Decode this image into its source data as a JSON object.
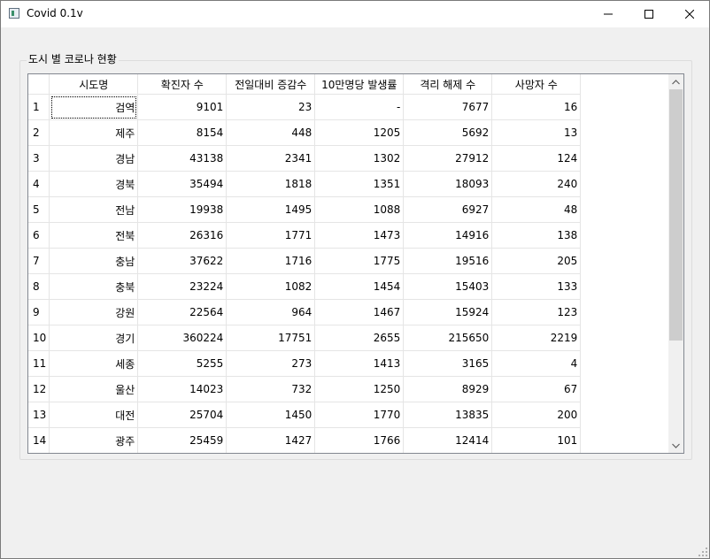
{
  "window": {
    "title": "Covid 0.1v"
  },
  "group": {
    "title": "도시 별 코로나 현황"
  },
  "table": {
    "columns": [
      "시도명",
      "확진자 수",
      "전일대비 증감수",
      "10만명당 발생률",
      "격리 해제 수",
      "사망자 수"
    ],
    "rows": [
      {
        "num": "1",
        "cells": [
          "검역",
          "9101",
          "23",
          "-",
          "7677",
          "16"
        ]
      },
      {
        "num": "2",
        "cells": [
          "제주",
          "8154",
          "448",
          "1205",
          "5692",
          "13"
        ]
      },
      {
        "num": "3",
        "cells": [
          "경남",
          "43138",
          "2341",
          "1302",
          "27912",
          "124"
        ]
      },
      {
        "num": "4",
        "cells": [
          "경북",
          "35494",
          "1818",
          "1351",
          "18093",
          "240"
        ]
      },
      {
        "num": "5",
        "cells": [
          "전남",
          "19938",
          "1495",
          "1088",
          "6927",
          "48"
        ]
      },
      {
        "num": "6",
        "cells": [
          "전북",
          "26316",
          "1771",
          "1473",
          "14916",
          "138"
        ]
      },
      {
        "num": "7",
        "cells": [
          "충남",
          "37622",
          "1716",
          "1775",
          "19516",
          "205"
        ]
      },
      {
        "num": "8",
        "cells": [
          "충북",
          "23224",
          "1082",
          "1454",
          "15403",
          "133"
        ]
      },
      {
        "num": "9",
        "cells": [
          "강원",
          "22564",
          "964",
          "1467",
          "15924",
          "123"
        ]
      },
      {
        "num": "10",
        "cells": [
          "경기",
          "360224",
          "17751",
          "2655",
          "215650",
          "2219"
        ]
      },
      {
        "num": "11",
        "cells": [
          "세종",
          "5255",
          "273",
          "1413",
          "3165",
          "4"
        ]
      },
      {
        "num": "12",
        "cells": [
          "울산",
          "14023",
          "732",
          "1250",
          "8929",
          "67"
        ]
      },
      {
        "num": "13",
        "cells": [
          "대전",
          "25704",
          "1450",
          "1770",
          "13835",
          "200"
        ]
      },
      {
        "num": "14",
        "cells": [
          "광주",
          "25459",
          "1427",
          "1766",
          "12414",
          "101"
        ]
      }
    ]
  },
  "scrollbar": {
    "position_fraction": 0.0,
    "visible_fraction": 0.72
  }
}
